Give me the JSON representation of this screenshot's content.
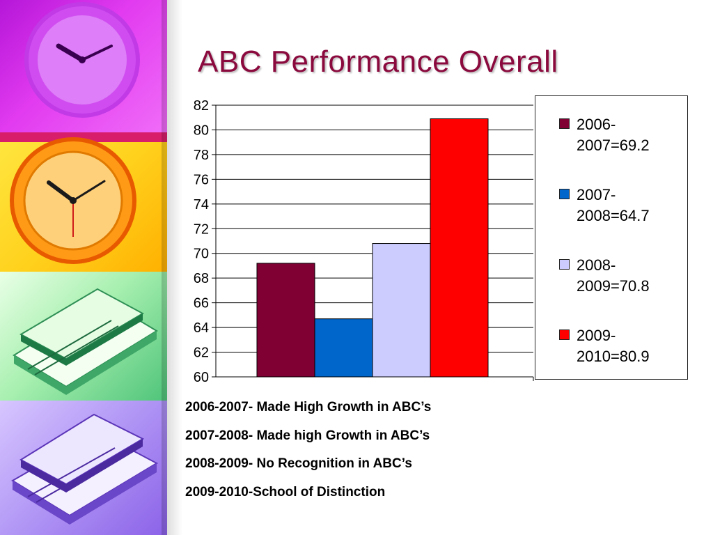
{
  "slide": {
    "title": "ABC Performance Overall",
    "notes": [
      "2006-2007- Made High Growth in ABC’s",
      "2007-2008- Made high Growth in ABC’s",
      "2008-2009- No Recognition in ABC’s",
      "2009-2010-School of Distinction"
    ]
  },
  "chart_data": {
    "type": "bar",
    "title": "",
    "xlabel": "",
    "ylabel": "",
    "ylim": [
      60,
      82
    ],
    "yticks": [
      82,
      80,
      78,
      76,
      74,
      72,
      70,
      68,
      66,
      64,
      62,
      60
    ],
    "grid": true,
    "legend_position": "right",
    "series": [
      {
        "name": "2006-2007=69.2",
        "value": 69.2,
        "color": "#800033"
      },
      {
        "name": "2007-2008=64.7",
        "value": 64.7,
        "color": "#0066cc"
      },
      {
        "name": "2008-2009=70.8",
        "value": 70.8,
        "color": "#ccccff"
      },
      {
        "name": "2009-2010=80.9",
        "value": 80.9,
        "color": "#ff0000"
      }
    ]
  },
  "decor": {
    "icons": [
      "purple-wall-clock-icon",
      "orange-wall-clock-icon",
      "green-book-stack-icon",
      "purple-book-stack-icon"
    ]
  }
}
